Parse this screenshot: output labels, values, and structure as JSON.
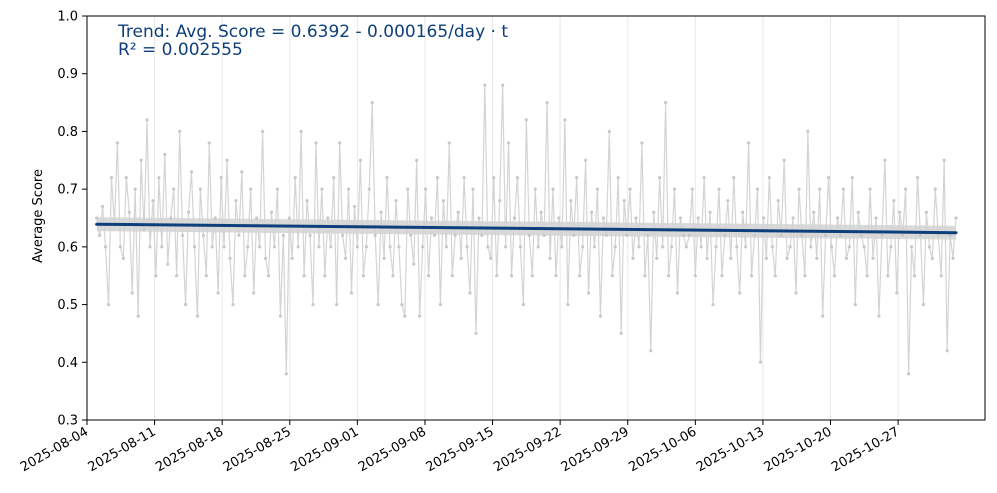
{
  "chart_data": {
    "type": "line",
    "ylabel": "Average Score",
    "xlabel": "",
    "ylim": [
      0.3,
      1.0
    ],
    "xlim": [
      "2025-08-04",
      "2025-11-05"
    ],
    "yticks": [
      "0.3",
      "0.4",
      "0.5",
      "0.6",
      "0.7",
      "0.8",
      "0.9",
      "1.0"
    ],
    "xticks": [
      "2025-08-04",
      "2025-08-11",
      "2025-08-18",
      "2025-08-25",
      "2025-09-01",
      "2025-09-08",
      "2025-09-15",
      "2025-09-22",
      "2025-09-29",
      "2025-10-06",
      "2025-10-13",
      "2025-10-20",
      "2025-10-27"
    ],
    "grid": "vertical",
    "annotation": {
      "line1": "Trend: Avg. Score = 0.6392 - 0.000165/day · t",
      "line2": "R² = 0.002555"
    },
    "trend": {
      "intercept": 0.6392,
      "slope_per_day": -0.000165,
      "x_start": "2025-08-05",
      "x_end": "2025-11-02",
      "color": "#0d3f7a"
    },
    "raw_series": {
      "x_start": "2025-08-05",
      "x_end": "2025-11-02",
      "values": [
        0.65,
        0.62,
        0.67,
        0.6,
        0.5,
        0.72,
        0.64,
        0.78,
        0.6,
        0.58,
        0.72,
        0.66,
        0.52,
        0.7,
        0.48,
        0.75,
        0.63,
        0.82,
        0.6,
        0.68,
        0.55,
        0.72,
        0.6,
        0.76,
        0.57,
        0.65,
        0.7,
        0.55,
        0.8,
        0.62,
        0.5,
        0.66,
        0.73,
        0.6,
        0.48,
        0.7,
        0.62,
        0.55,
        0.78,
        0.6,
        0.65,
        0.52,
        0.72,
        0.6,
        0.75,
        0.58,
        0.5,
        0.68,
        0.62,
        0.73,
        0.55,
        0.6,
        0.7,
        0.52,
        0.65,
        0.6,
        0.8,
        0.58,
        0.55,
        0.66,
        0.6,
        0.7,
        0.48,
        0.62,
        0.38,
        0.65,
        0.58,
        0.72,
        0.6,
        0.8,
        0.55,
        0.68,
        0.62,
        0.5,
        0.78,
        0.6,
        0.7,
        0.55,
        0.65,
        0.6,
        0.72,
        0.5,
        0.78,
        0.62,
        0.58,
        0.7,
        0.52,
        0.67,
        0.6,
        0.75,
        0.55,
        0.6,
        0.7,
        0.85,
        0.62,
        0.5,
        0.66,
        0.58,
        0.72,
        0.6,
        0.55,
        0.68,
        0.6,
        0.5,
        0.48,
        0.7,
        0.62,
        0.57,
        0.75,
        0.48,
        0.6,
        0.7,
        0.55,
        0.65,
        0.62,
        0.72,
        0.5,
        0.68,
        0.6,
        0.78,
        0.55,
        0.62,
        0.66,
        0.58,
        0.72,
        0.6,
        0.52,
        0.7,
        0.45,
        0.65,
        0.62,
        0.88,
        0.6,
        0.58,
        0.72,
        0.55,
        0.68,
        0.88,
        0.6,
        0.78,
        0.55,
        0.65,
        0.72,
        0.6,
        0.5,
        0.82,
        0.62,
        0.55,
        0.7,
        0.6,
        0.66,
        0.62,
        0.85,
        0.58,
        0.7,
        0.55,
        0.65,
        0.6,
        0.82,
        0.5,
        0.68,
        0.62,
        0.72,
        0.55,
        0.6,
        0.75,
        0.52,
        0.66,
        0.6,
        0.7,
        0.48,
        0.65,
        0.62,
        0.8,
        0.55,
        0.6,
        0.72,
        0.45,
        0.68,
        0.62,
        0.7,
        0.58,
        0.65,
        0.6,
        0.78,
        0.55,
        0.62,
        0.42,
        0.66,
        0.58,
        0.72,
        0.6,
        0.85,
        0.55,
        0.6,
        0.7,
        0.52,
        0.65,
        0.62,
        0.6,
        0.62,
        0.7,
        0.55,
        0.65,
        0.6,
        0.72,
        0.58,
        0.66,
        0.5,
        0.6,
        0.7,
        0.55,
        0.62,
        0.68,
        0.58,
        0.72,
        0.6,
        0.52,
        0.66,
        0.6,
        0.78,
        0.55,
        0.62,
        0.7,
        0.4,
        0.65,
        0.58,
        0.72,
        0.6,
        0.55,
        0.68,
        0.62,
        0.75,
        0.58,
        0.6,
        0.65,
        0.52,
        0.7,
        0.62,
        0.55,
        0.8,
        0.6,
        0.66,
        0.58,
        0.7,
        0.48,
        0.62,
        0.72,
        0.6,
        0.55,
        0.65,
        0.62,
        0.7,
        0.58,
        0.6,
        0.72,
        0.5,
        0.66,
        0.62,
        0.6,
        0.55,
        0.7,
        0.58,
        0.65,
        0.48,
        0.62,
        0.75,
        0.55,
        0.6,
        0.68,
        0.52,
        0.66,
        0.62,
        0.7,
        0.38,
        0.6,
        0.55,
        0.72,
        0.62,
        0.5,
        0.66,
        0.6,
        0.58,
        0.7,
        0.62,
        0.55,
        0.75,
        0.42,
        0.62,
        0.58,
        0.65
      ]
    },
    "colors": {
      "raw_line": "#d4d4d4",
      "raw_band": "#cccccc",
      "grid": "#e8e8e8",
      "trend": "#0d3f7a",
      "annotation": "#0d3f7a"
    }
  }
}
